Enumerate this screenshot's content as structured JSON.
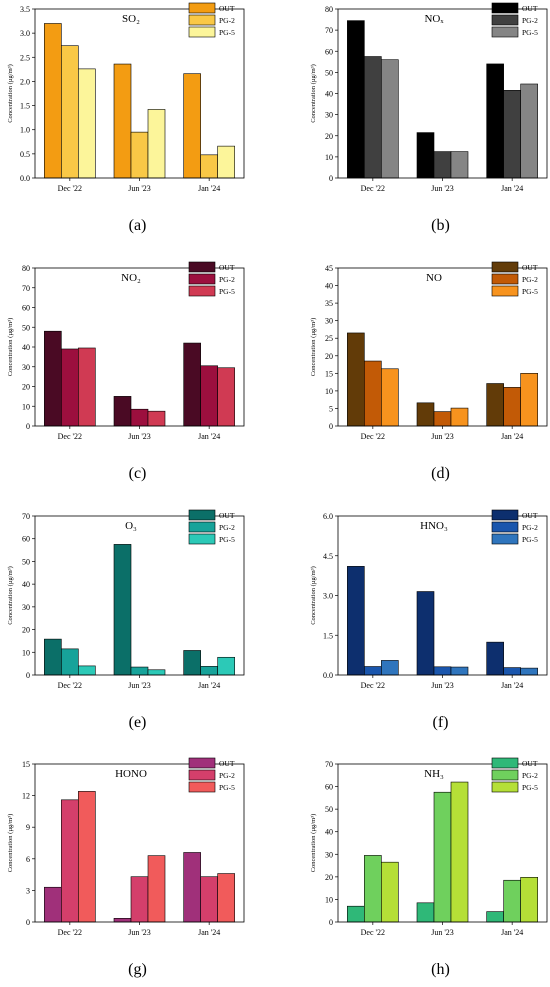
{
  "figure": {
    "series_names": [
      "OUT",
      "PG-2",
      "PG-5"
    ],
    "categories": [
      "Dec '22",
      "Jun '23",
      "Jan '24"
    ],
    "ylabel": "Concentration (µg/m³)"
  },
  "chart_data": [
    {
      "id": "a",
      "panel_label": "(a)",
      "type": "bar",
      "title": "SO₂",
      "ylabel": "Concentration (µg/m³)",
      "categories": [
        "Dec '22",
        "Jun '23",
        "Jan '24"
      ],
      "ylim": [
        0,
        3.5
      ],
      "yticks": [
        "0.0",
        "0.5",
        "1.0",
        "1.5",
        "2.0",
        "2.5",
        "3.0",
        "3.5"
      ],
      "tick_values": [
        0,
        0.5,
        1,
        1.5,
        2,
        2.5,
        3,
        3.5
      ],
      "colors": [
        "#f39c12",
        "#f9c846",
        "#fcf59a"
      ],
      "series": [
        {
          "name": "OUT",
          "values": [
            3.2,
            2.36,
            2.16
          ]
        },
        {
          "name": "PG-2",
          "values": [
            2.74,
            0.95,
            0.48
          ]
        },
        {
          "name": "PG-5",
          "values": [
            2.26,
            1.42,
            0.66
          ]
        }
      ]
    },
    {
      "id": "b",
      "panel_label": "(b)",
      "type": "bar",
      "title": "NOₓ",
      "ylabel": "Concentration (µg/m³)",
      "categories": [
        "Dec '22",
        "Jun '23",
        "Jan '24"
      ],
      "ylim": [
        0,
        80
      ],
      "yticks": [
        "0",
        "10",
        "20",
        "30",
        "40",
        "50",
        "60",
        "70",
        "80"
      ],
      "tick_values": [
        0,
        10,
        20,
        30,
        40,
        50,
        60,
        70,
        80
      ],
      "colors": [
        "#000000",
        "#404040",
        "#858585"
      ],
      "series": [
        {
          "name": "OUT",
          "values": [
            74.5,
            21.5,
            54
          ]
        },
        {
          "name": "PG-2",
          "values": [
            57.5,
            12.5,
            41.5
          ]
        },
        {
          "name": "PG-5",
          "values": [
            56,
            12.5,
            44.5
          ]
        }
      ]
    },
    {
      "id": "c",
      "panel_label": "(c)",
      "type": "bar",
      "title": "NO₂",
      "ylabel": "Concentration (µg/m³)",
      "categories": [
        "Dec '22",
        "Jun '23",
        "Jan '24"
      ],
      "ylim": [
        0,
        80
      ],
      "yticks": [
        "0",
        "10",
        "20",
        "30",
        "40",
        "50",
        "60",
        "70",
        "80"
      ],
      "tick_values": [
        0,
        10,
        20,
        30,
        40,
        50,
        60,
        70,
        80
      ],
      "colors": [
        "#4a0a24",
        "#9c0f3e",
        "#d03a53"
      ],
      "series": [
        {
          "name": "OUT",
          "values": [
            48,
            15,
            42
          ]
        },
        {
          "name": "PG-2",
          "values": [
            39,
            8.5,
            30.5
          ]
        },
        {
          "name": "PG-5",
          "values": [
            39.5,
            7.5,
            29.5
          ]
        }
      ]
    },
    {
      "id": "d",
      "panel_label": "(d)",
      "type": "bar",
      "title": "NO",
      "ylabel": "Concentration (µg/m³)",
      "categories": [
        "Dec '22",
        "Jun '23",
        "Jan '24"
      ],
      "ylim": [
        0,
        45
      ],
      "yticks": [
        "0",
        "5",
        "10",
        "15",
        "20",
        "25",
        "30",
        "35",
        "40",
        "45"
      ],
      "tick_values": [
        0,
        5,
        10,
        15,
        20,
        25,
        30,
        35,
        40,
        45
      ],
      "colors": [
        "#623b08",
        "#c25a06",
        "#f7931e"
      ],
      "series": [
        {
          "name": "OUT",
          "values": [
            26.5,
            6.6,
            12.1
          ]
        },
        {
          "name": "PG-2",
          "values": [
            18.5,
            4.1,
            11
          ]
        },
        {
          "name": "PG-5",
          "values": [
            16.3,
            5.1,
            15
          ]
        }
      ]
    },
    {
      "id": "e",
      "panel_label": "(e)",
      "type": "bar",
      "title": "O₃",
      "ylabel": "Concentration (µg/m³)",
      "categories": [
        "Dec '22",
        "Jun '23",
        "Jan '24"
      ],
      "ylim": [
        0,
        70
      ],
      "yticks": [
        "0",
        "10",
        "20",
        "30",
        "40",
        "50",
        "60",
        "70"
      ],
      "tick_values": [
        0,
        10,
        20,
        30,
        40,
        50,
        60,
        70
      ],
      "colors": [
        "#0b6f68",
        "#17a39a",
        "#2cc9b7"
      ],
      "series": [
        {
          "name": "OUT",
          "values": [
            15.8,
            57.5,
            10.8
          ]
        },
        {
          "name": "PG-2",
          "values": [
            11.5,
            3.5,
            3.8
          ]
        },
        {
          "name": "PG-5",
          "values": [
            4,
            2.3,
            7.8
          ]
        }
      ]
    },
    {
      "id": "f",
      "panel_label": "(f)",
      "type": "bar",
      "title": "HNO₃",
      "ylabel": "Concentration (µg/m³)",
      "categories": [
        "Dec '22",
        "Jun '23",
        "Jan '24"
      ],
      "ylim": [
        0,
        6
      ],
      "yticks": [
        "0.0",
        "1.5",
        "3.0",
        "4.5",
        "6.0"
      ],
      "tick_values": [
        0,
        1.5,
        3,
        4.5,
        6
      ],
      "colors": [
        "#0d2f6e",
        "#1a56ad",
        "#2f75bd"
      ],
      "series": [
        {
          "name": "OUT",
          "values": [
            4.1,
            3.15,
            1.24
          ]
        },
        {
          "name": "PG-2",
          "values": [
            0.32,
            0.31,
            0.28
          ]
        },
        {
          "name": "PG-5",
          "values": [
            0.55,
            0.3,
            0.26
          ]
        }
      ]
    },
    {
      "id": "g",
      "panel_label": "(g)",
      "type": "bar",
      "title": "HONO",
      "ylabel": "Concentration (µg/m³)",
      "categories": [
        "Dec '22",
        "Jun '23",
        "Jan '24"
      ],
      "ylim": [
        0,
        15
      ],
      "yticks": [
        "0",
        "3",
        "6",
        "9",
        "12",
        "15"
      ],
      "tick_values": [
        0,
        3,
        6,
        9,
        12,
        15
      ],
      "colors": [
        "#a0307a",
        "#d43f6b",
        "#f15b5b"
      ],
      "series": [
        {
          "name": "OUT",
          "values": [
            3.3,
            0.35,
            6.6
          ]
        },
        {
          "name": "PG-2",
          "values": [
            11.6,
            4.3,
            4.3
          ]
        },
        {
          "name": "PG-5",
          "values": [
            12.4,
            6.3,
            4.6
          ]
        }
      ]
    },
    {
      "id": "h",
      "panel_label": "(h)",
      "type": "bar",
      "title": "NH₃",
      "ylabel": "Concentration (µg/m³)",
      "categories": [
        "Dec '22",
        "Jun '23",
        "Jan '24"
      ],
      "ylim": [
        0,
        70
      ],
      "yticks": [
        "0",
        "10",
        "20",
        "30",
        "40",
        "50",
        "60",
        "70"
      ],
      "tick_values": [
        0,
        10,
        20,
        30,
        40,
        50,
        60,
        70
      ],
      "colors": [
        "#2fb878",
        "#6fd05d",
        "#b5df37"
      ],
      "series": [
        {
          "name": "OUT",
          "values": [
            7,
            8.5,
            4.6
          ]
        },
        {
          "name": "PG-2",
          "values": [
            29.5,
            57.5,
            18.5
          ]
        },
        {
          "name": "PG-5",
          "values": [
            26.5,
            62,
            19.8
          ]
        }
      ]
    }
  ]
}
